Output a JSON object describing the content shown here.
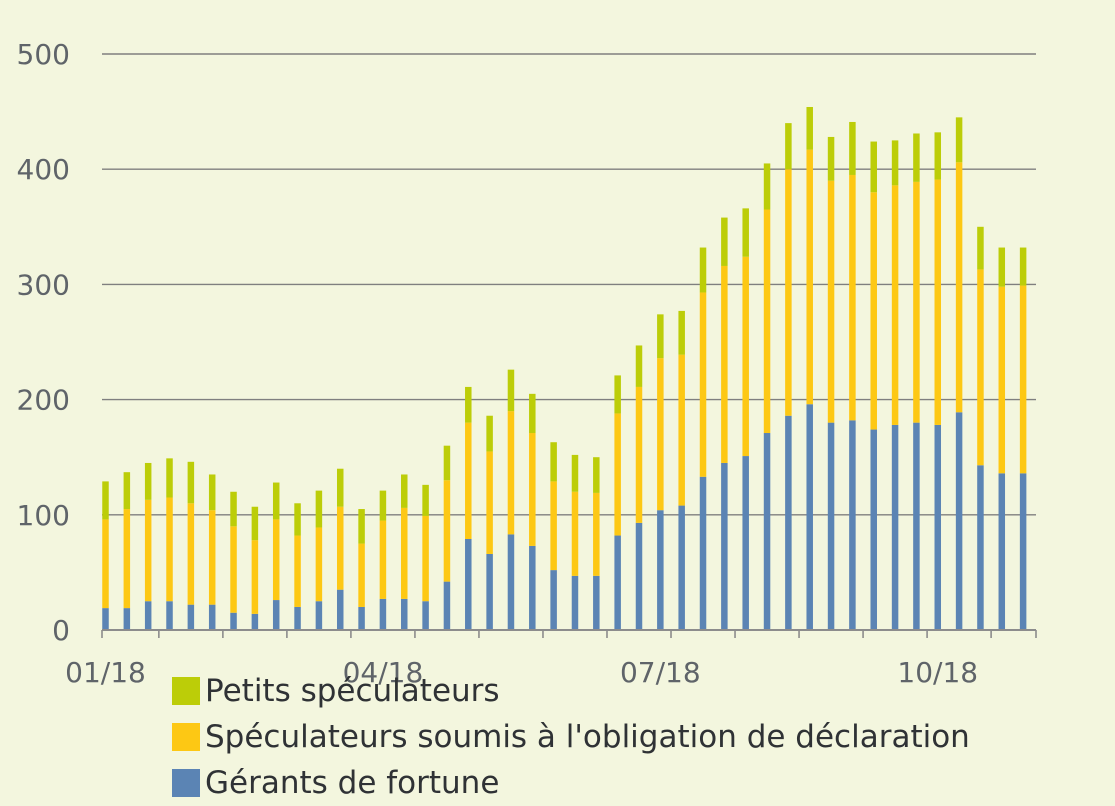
{
  "chart_data": {
    "type": "bar",
    "stacked": true,
    "title": "",
    "xlabel": "",
    "ylabel": "",
    "ylim": [
      0,
      500
    ],
    "yticks": [
      0,
      100,
      200,
      300,
      400,
      500
    ],
    "yticklabels": [
      "0",
      "100",
      "200",
      "300",
      "400",
      "500"
    ],
    "xtick_labels": [
      {
        "label": "01/18",
        "index": 0
      },
      {
        "label": "04/18",
        "index": 13
      },
      {
        "label": "07/18",
        "index": 26
      },
      {
        "label": "10/18",
        "index": 39
      }
    ],
    "grid": "horizontal",
    "legend_position": "bottom-left",
    "categories": [
      "1",
      "2",
      "3",
      "4",
      "5",
      "6",
      "7",
      "8",
      "9",
      "10",
      "11",
      "12",
      "13",
      "14",
      "15",
      "16",
      "17",
      "18",
      "19",
      "20",
      "21",
      "22",
      "23",
      "24",
      "25",
      "26",
      "27",
      "28",
      "29",
      "30",
      "31",
      "32",
      "33",
      "34",
      "35",
      "36",
      "37",
      "38",
      "39",
      "40",
      "41",
      "42",
      "43",
      "44"
    ],
    "series": [
      {
        "name": "Gérants de fortune",
        "color": "#5b84b4",
        "values": [
          19,
          19,
          25,
          25,
          22,
          22,
          15,
          14,
          26,
          20,
          25,
          35,
          20,
          27,
          27,
          25,
          42,
          79,
          66,
          83,
          73,
          52,
          47,
          47,
          82,
          93,
          104,
          108,
          133,
          145,
          151,
          171,
          186,
          196,
          180,
          182,
          174,
          178,
          180,
          178,
          189,
          143,
          136,
          136
        ]
      },
      {
        "name": "Spéculateurs soumis à l'obligation de déclaration",
        "color": "#fdc814",
        "values": [
          77,
          86,
          88,
          90,
          88,
          82,
          75,
          64,
          70,
          62,
          64,
          72,
          55,
          68,
          79,
          74,
          88,
          101,
          89,
          107,
          98,
          77,
          73,
          72,
          106,
          118,
          132,
          131,
          160,
          171,
          173,
          194,
          214,
          221,
          210,
          213,
          206,
          208,
          209,
          213,
          217,
          170,
          162,
          163
        ]
      },
      {
        "name": "Petits spéculateurs",
        "color": "#bccd08",
        "values": [
          33,
          32,
          32,
          34,
          36,
          31,
          30,
          29,
          32,
          28,
          32,
          33,
          30,
          26,
          29,
          27,
          30,
          31,
          31,
          36,
          34,
          34,
          32,
          31,
          33,
          36,
          38,
          38,
          39,
          42,
          42,
          40,
          40,
          37,
          38,
          46,
          44,
          39,
          42,
          41,
          39,
          37,
          34,
          33
        ]
      }
    ],
    "legend": [
      "Petits spéculateurs",
      "Spéculateurs soumis à l'obligation de déclaration",
      "Gérants de fortune"
    ]
  },
  "colors": {
    "background": "#f3f6de",
    "grid": "#7f7f7f",
    "axis": "#8c8c8c",
    "text": "#5f6469"
  }
}
